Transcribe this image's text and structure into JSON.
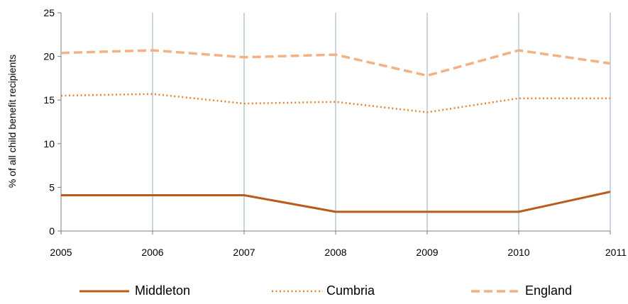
{
  "chart_data": {
    "type": "line",
    "title": "",
    "xlabel": "",
    "ylabel": "% of all child benefit recipients",
    "x": [
      "2005",
      "2006",
      "2007",
      "2008",
      "2009",
      "2010",
      "2011"
    ],
    "ylim": [
      0,
      25
    ],
    "yticks": [
      "0",
      "5",
      "10",
      "15",
      "20",
      "25"
    ],
    "grid": "vertical",
    "legend_position": "bottom",
    "series": [
      {
        "name": "Middleton",
        "values": [
          4.1,
          4.1,
          4.1,
          2.2,
          2.2,
          2.2,
          4.5
        ],
        "color": "#b85c1c",
        "style": "solid"
      },
      {
        "name": "Cumbria",
        "values": [
          15.5,
          15.7,
          14.6,
          14.8,
          13.6,
          15.2,
          15.2
        ],
        "color": "#e8822e",
        "style": "dotted"
      },
      {
        "name": "England",
        "values": [
          20.4,
          20.7,
          19.9,
          20.2,
          17.8,
          20.7,
          19.2
        ],
        "color": "#f4b183",
        "style": "dashed"
      }
    ]
  }
}
